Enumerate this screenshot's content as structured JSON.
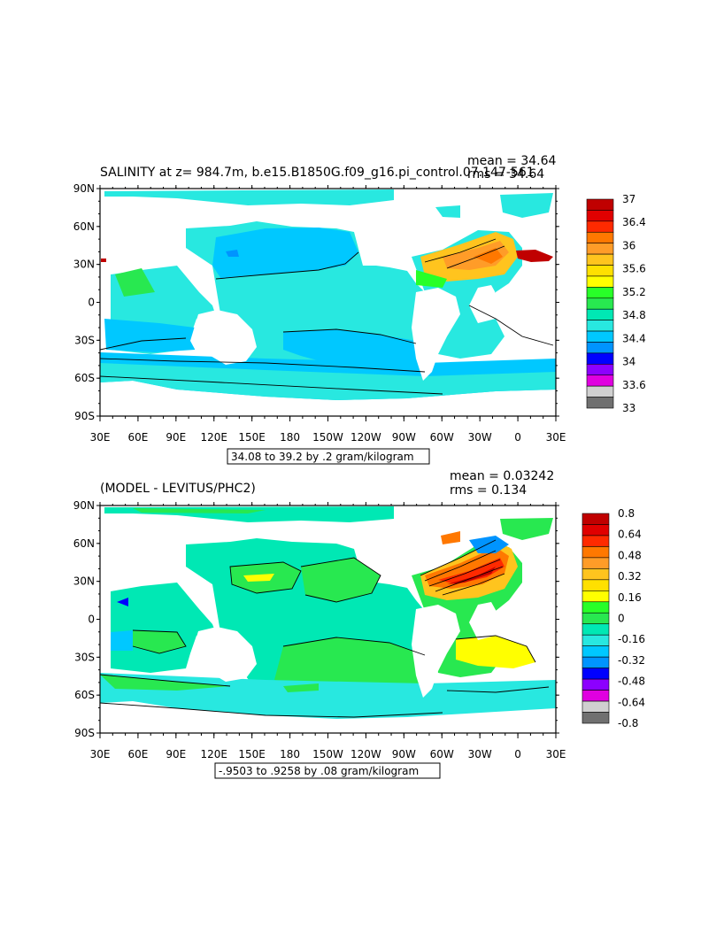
{
  "panel_top": {
    "title": "SALINITY at z= 984.7m, b.e15.B1850G.f09_g16.pi_control.07.147-561",
    "mean": "mean = 34.64",
    "rms": "rms = 34.64",
    "range_caption": "34.08 to 39.2 by .2 gram/kilogram",
    "lat_labels": [
      "90N",
      "60N",
      "30N",
      "0",
      "30S",
      "60S",
      "90S"
    ],
    "lon_labels": [
      "30E",
      "60E",
      "90E",
      "120E",
      "150E",
      "180",
      "150W",
      "120W",
      "90W",
      "60W",
      "30W",
      "0",
      "30E"
    ],
    "colorbar": {
      "labels": [
        "37",
        "36.4",
        "36",
        "35.6",
        "35.2",
        "34.8",
        "34.4",
        "34",
        "33.6",
        "33"
      ],
      "colors": [
        "#c00000",
        "#e00000",
        "#ff2a00",
        "#ff7800",
        "#ff9c28",
        "#ffc41e",
        "#ffe000",
        "#ffff00",
        "#28ff28",
        "#28e850",
        "#00e8b4",
        "#28e8e0",
        "#00c8ff",
        "#0094ff",
        "#0000ff",
        "#8c00ff",
        "#e000e0",
        "#d0d0d0",
        "#707070"
      ]
    }
  },
  "panel_bottom": {
    "title": "(MODEL - LEVITUS/PHC2)",
    "mean": "mean = 0.03242",
    "rms": "rms = 0.134",
    "range_caption": "-.9503 to .9258 by .08 gram/kilogram",
    "lat_labels": [
      "90N",
      "60N",
      "30N",
      "0",
      "30S",
      "60S",
      "90S"
    ],
    "lon_labels": [
      "30E",
      "60E",
      "90E",
      "120E",
      "150E",
      "180",
      "150W",
      "120W",
      "90W",
      "60W",
      "30W",
      "0",
      "30E"
    ],
    "colorbar": {
      "labels": [
        "0.8",
        "0.64",
        "0.48",
        "0.32",
        "0.16",
        "0",
        "-0.16",
        "-0.32",
        "-0.48",
        "-0.64",
        "-0.8"
      ],
      "colors": [
        "#c00000",
        "#e00000",
        "#ff2a00",
        "#ff7800",
        "#ff9c28",
        "#ffc41e",
        "#ffe000",
        "#ffff00",
        "#28ff28",
        "#28e850",
        "#00e8b4",
        "#28e8e0",
        "#00c8ff",
        "#0094ff",
        "#0000ff",
        "#8c00ff",
        "#e000e0",
        "#d0d0d0",
        "#707070"
      ]
    }
  }
}
